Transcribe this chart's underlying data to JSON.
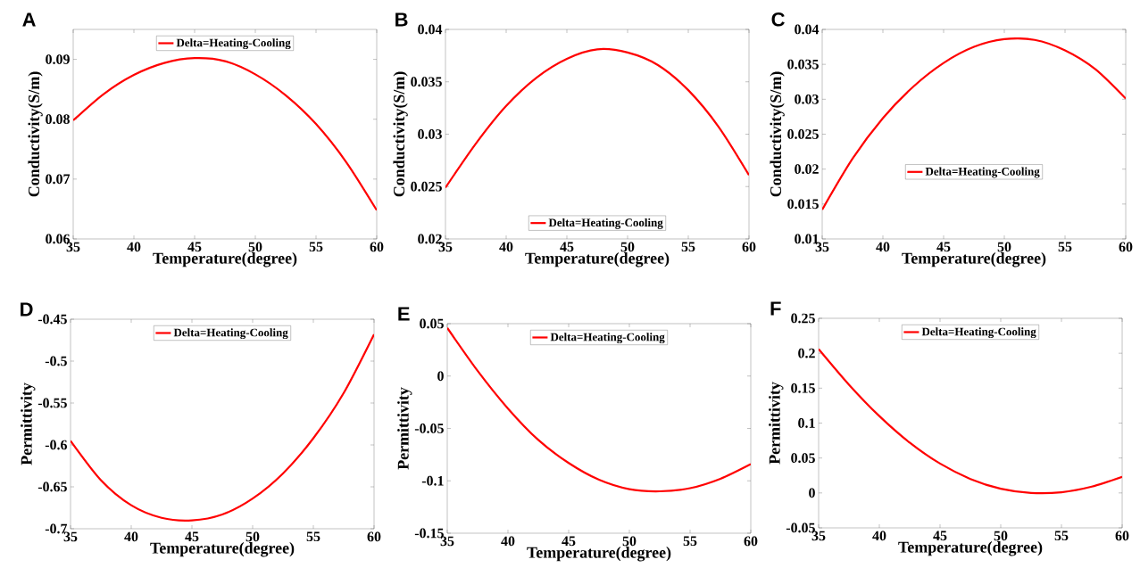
{
  "chart_data": [
    {
      "type": "line",
      "title": "A",
      "xlabel": "Temperature(degree)",
      "ylabel": "Conductivity(S/m)",
      "x": [
        35,
        37.5,
        40,
        42.5,
        45,
        47.5,
        50,
        52.5,
        55,
        57.5,
        60
      ],
      "series": [
        {
          "name": "Delta=Heating-Cooling",
          "color": "#ff0000",
          "values": [
            0.0798,
            0.0842,
            0.0874,
            0.0894,
            0.0902,
            0.0897,
            0.0875,
            0.084,
            0.0792,
            0.0728,
            0.0648
          ]
        }
      ],
      "xlim": [
        35,
        60
      ],
      "ylim": [
        0.06,
        0.095
      ],
      "xticks": [
        35,
        40,
        45,
        50,
        55,
        60
      ],
      "yticks": [
        0.06,
        0.07,
        0.08,
        0.09
      ],
      "legend": "top"
    },
    {
      "type": "line",
      "title": "B",
      "xlabel": "Temperature(degree)",
      "ylabel": "Conductivity(S/m)",
      "x": [
        35,
        37.5,
        40,
        42.5,
        45,
        47.5,
        50,
        52.5,
        55,
        57.5,
        60
      ],
      "series": [
        {
          "name": "Delta=Heating-Cooling",
          "color": "#ff0000",
          "values": [
            0.0249,
            0.0291,
            0.0327,
            0.0354,
            0.0372,
            0.0381,
            0.0378,
            0.0366,
            0.0342,
            0.0307,
            0.0261
          ]
        }
      ],
      "xlim": [
        35,
        60
      ],
      "ylim": [
        0.02,
        0.04
      ],
      "xticks": [
        35,
        40,
        45,
        50,
        55,
        60
      ],
      "yticks": [
        0.02,
        0.025,
        0.03,
        0.035,
        0.04
      ],
      "legend": "bottom"
    },
    {
      "type": "line",
      "title": "C",
      "xlabel": "Temperature(degree)",
      "ylabel": "Conductivity(S/m)",
      "x": [
        35,
        37.5,
        40,
        42.5,
        45,
        47.5,
        50,
        52.5,
        55,
        57.5,
        60
      ],
      "series": [
        {
          "name": "Delta=Heating-Cooling",
          "color": "#ff0000",
          "values": [
            0.0142,
            0.0215,
            0.0273,
            0.0318,
            0.0352,
            0.0375,
            0.0386,
            0.0385,
            0.037,
            0.0343,
            0.0301
          ]
        }
      ],
      "xlim": [
        35,
        60
      ],
      "ylim": [
        0.01,
        0.04
      ],
      "xticks": [
        35,
        40,
        45,
        50,
        55,
        60
      ],
      "yticks": [
        0.01,
        0.015,
        0.02,
        0.025,
        0.03,
        0.035,
        0.04
      ],
      "legend": "center"
    },
    {
      "type": "line",
      "title": "D",
      "xlabel": "Temperature(degree)",
      "ylabel": "Permittivity",
      "x": [
        35,
        37.5,
        40,
        42.5,
        45,
        47.5,
        50,
        52.5,
        55,
        57.5,
        60
      ],
      "series": [
        {
          "name": "Delta=Heating-Cooling",
          "color": "#ff0000",
          "values": [
            -0.595,
            -0.642,
            -0.672,
            -0.687,
            -0.69,
            -0.683,
            -0.664,
            -0.634,
            -0.592,
            -0.538,
            -0.468
          ]
        }
      ],
      "xlim": [
        35,
        60
      ],
      "ylim": [
        -0.7,
        -0.45
      ],
      "xticks": [
        35,
        40,
        45,
        50,
        55,
        60
      ],
      "yticks": [
        -0.7,
        -0.65,
        -0.6,
        -0.55,
        -0.5,
        -0.45
      ],
      "legend": "top"
    },
    {
      "type": "line",
      "title": "E",
      "xlabel": "Temperature(degree)",
      "ylabel": "Permittivity",
      "x": [
        35,
        37.5,
        40,
        42.5,
        45,
        47.5,
        50,
        52.5,
        55,
        57.5,
        60
      ],
      "series": [
        {
          "name": "Delta=Heating-Cooling",
          "color": "#ff0000",
          "values": [
            0.046,
            0.005,
            -0.031,
            -0.061,
            -0.083,
            -0.099,
            -0.108,
            -0.11,
            -0.107,
            -0.098,
            -0.084
          ]
        }
      ],
      "xlim": [
        35,
        60
      ],
      "ylim": [
        -0.15,
        0.05
      ],
      "xticks": [
        35,
        40,
        45,
        50,
        55,
        60
      ],
      "yticks": [
        -0.15,
        -0.1,
        -0.05,
        0,
        0.05
      ],
      "legend": "top"
    },
    {
      "type": "line",
      "title": "F",
      "xlabel": "Temperature(degree)",
      "ylabel": "Permittivity",
      "x": [
        35,
        37.5,
        40,
        42.5,
        45,
        47.5,
        50,
        52.5,
        55,
        57.5,
        60
      ],
      "series": [
        {
          "name": "Delta=Heating-Cooling",
          "color": "#ff0000",
          "values": [
            0.206,
            0.155,
            0.11,
            0.072,
            0.042,
            0.02,
            0.006,
            0.0,
            0.001,
            0.009,
            0.023
          ]
        }
      ],
      "xlim": [
        35,
        60
      ],
      "ylim": [
        -0.05,
        0.25
      ],
      "xticks": [
        35,
        40,
        45,
        50,
        55,
        60
      ],
      "yticks": [
        -0.05,
        0,
        0.05,
        0.1,
        0.15,
        0.2,
        0.25
      ],
      "legend": "top"
    }
  ]
}
